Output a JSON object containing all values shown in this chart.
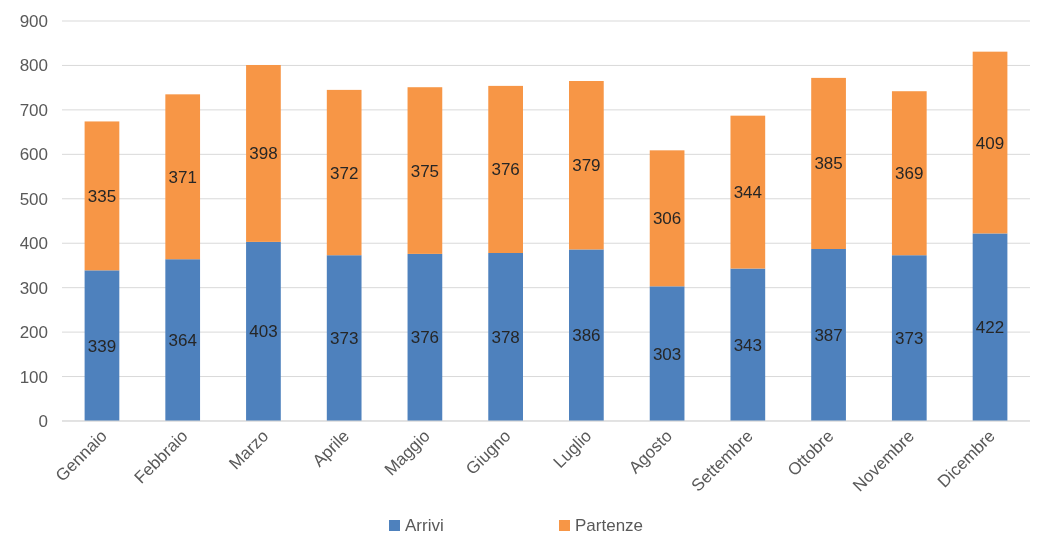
{
  "chart_data": {
    "type": "bar",
    "stacked": true,
    "categories": [
      "Gennaio",
      "Febbraio",
      "Marzo",
      "Aprile",
      "Maggio",
      "Giugno",
      "Luglio",
      "Agosto",
      "Settembre",
      "Ottobre",
      "Novembre",
      "Dicembre"
    ],
    "series": [
      {
        "name": "Arrivi",
        "color": "#4e81bd",
        "values": [
          339,
          364,
          403,
          373,
          376,
          378,
          386,
          303,
          343,
          387,
          373,
          422
        ]
      },
      {
        "name": "Partenze",
        "color": "#f79646",
        "values": [
          335,
          371,
          398,
          372,
          375,
          376,
          379,
          306,
          344,
          385,
          369,
          409
        ]
      }
    ],
    "ylim": [
      0,
      900
    ],
    "yticks": [
      0,
      100,
      200,
      300,
      400,
      500,
      600,
      700,
      800,
      900
    ],
    "grid": "y",
    "legend": "bottom",
    "data_labels": true
  }
}
